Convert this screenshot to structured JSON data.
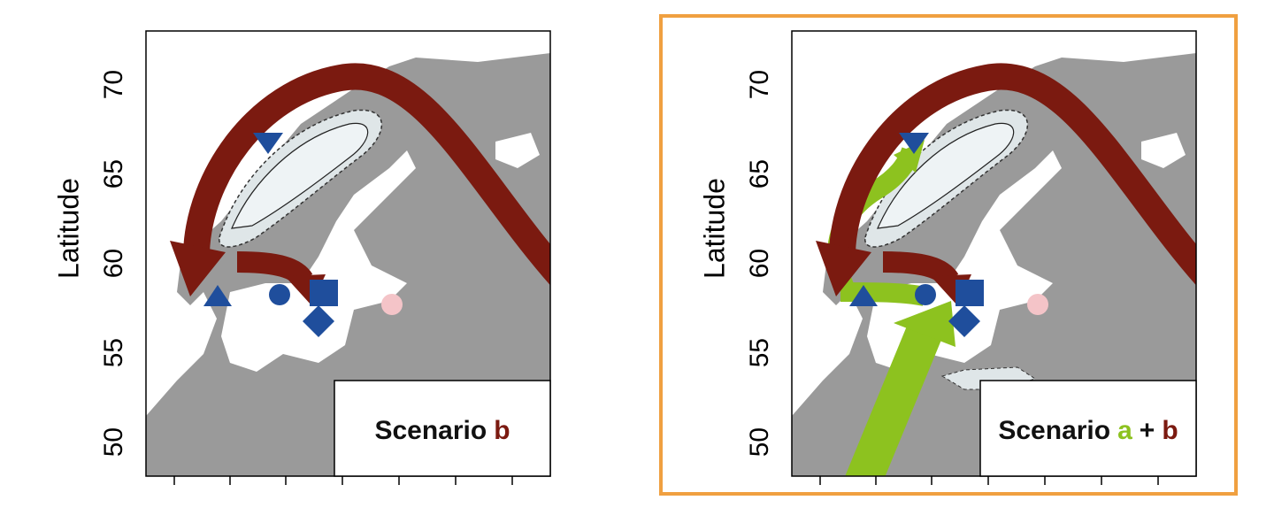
{
  "chart_data": [
    {
      "type": "map",
      "ylabel": "Latitude",
      "ylim": [
        48.1,
        73
      ],
      "yticks": [
        50,
        55,
        60,
        65,
        70
      ],
      "legend": [
        {
          "text": "Scenario",
          "color": "#111111"
        },
        {
          "text": "b",
          "color": "#7b1a10"
        }
      ]
    },
    {
      "type": "map",
      "ylabel": "Latitude",
      "ylim": [
        48.1,
        73
      ],
      "yticks": [
        50,
        55,
        60,
        65,
        70
      ],
      "legend": [
        {
          "text": "Scenario",
          "color": "#111111"
        },
        {
          "text": "a",
          "color": "#8dc21f"
        },
        {
          "text": "+",
          "color": "#111111"
        },
        {
          "text": "b",
          "color": "#7b1a10"
        }
      ]
    }
  ]
}
